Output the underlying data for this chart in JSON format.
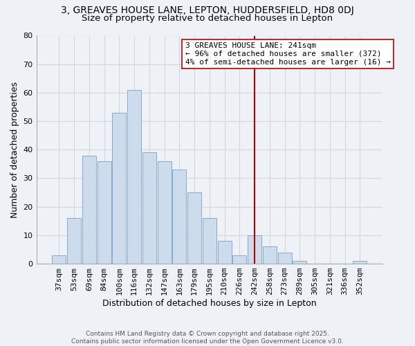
{
  "title_line1": "3, GREAVES HOUSE LANE, LEPTON, HUDDERSFIELD, HD8 0DJ",
  "title_line2": "Size of property relative to detached houses in Lepton",
  "xlabel": "Distribution of detached houses by size in Lepton",
  "ylabel": "Number of detached properties",
  "bar_labels": [
    "37sqm",
    "53sqm",
    "69sqm",
    "84sqm",
    "100sqm",
    "116sqm",
    "132sqm",
    "147sqm",
    "163sqm",
    "179sqm",
    "195sqm",
    "210sqm",
    "226sqm",
    "242sqm",
    "258sqm",
    "273sqm",
    "289sqm",
    "305sqm",
    "321sqm",
    "336sqm",
    "352sqm"
  ],
  "bar_values": [
    3,
    16,
    38,
    36,
    53,
    61,
    39,
    36,
    33,
    25,
    16,
    8,
    3,
    10,
    6,
    4,
    1,
    0,
    0,
    0,
    1
  ],
  "bar_color": "#ccdcec",
  "bar_edge_color": "#88aac8",
  "grid_color": "#d0d8e0",
  "vline_x_index": 13,
  "vline_color": "#bb0000",
  "annotation_title": "3 GREAVES HOUSE LANE: 241sqm",
  "annotation_line1": "← 96% of detached houses are smaller (372)",
  "annotation_line2": "4% of semi-detached houses are larger (16) →",
  "footnote1": "Contains HM Land Registry data © Crown copyright and database right 2025.",
  "footnote2": "Contains public sector information licensed under the Open Government Licence v3.0.",
  "ylim": [
    0,
    80
  ],
  "yticks": [
    0,
    10,
    20,
    30,
    40,
    50,
    60,
    70,
    80
  ],
  "bg_color": "#eef2f7",
  "title_fontsize": 10,
  "subtitle_fontsize": 9.5,
  "axis_label_fontsize": 9,
  "tick_fontsize": 8,
  "annot_fontsize": 8,
  "footnote_fontsize": 6.5
}
